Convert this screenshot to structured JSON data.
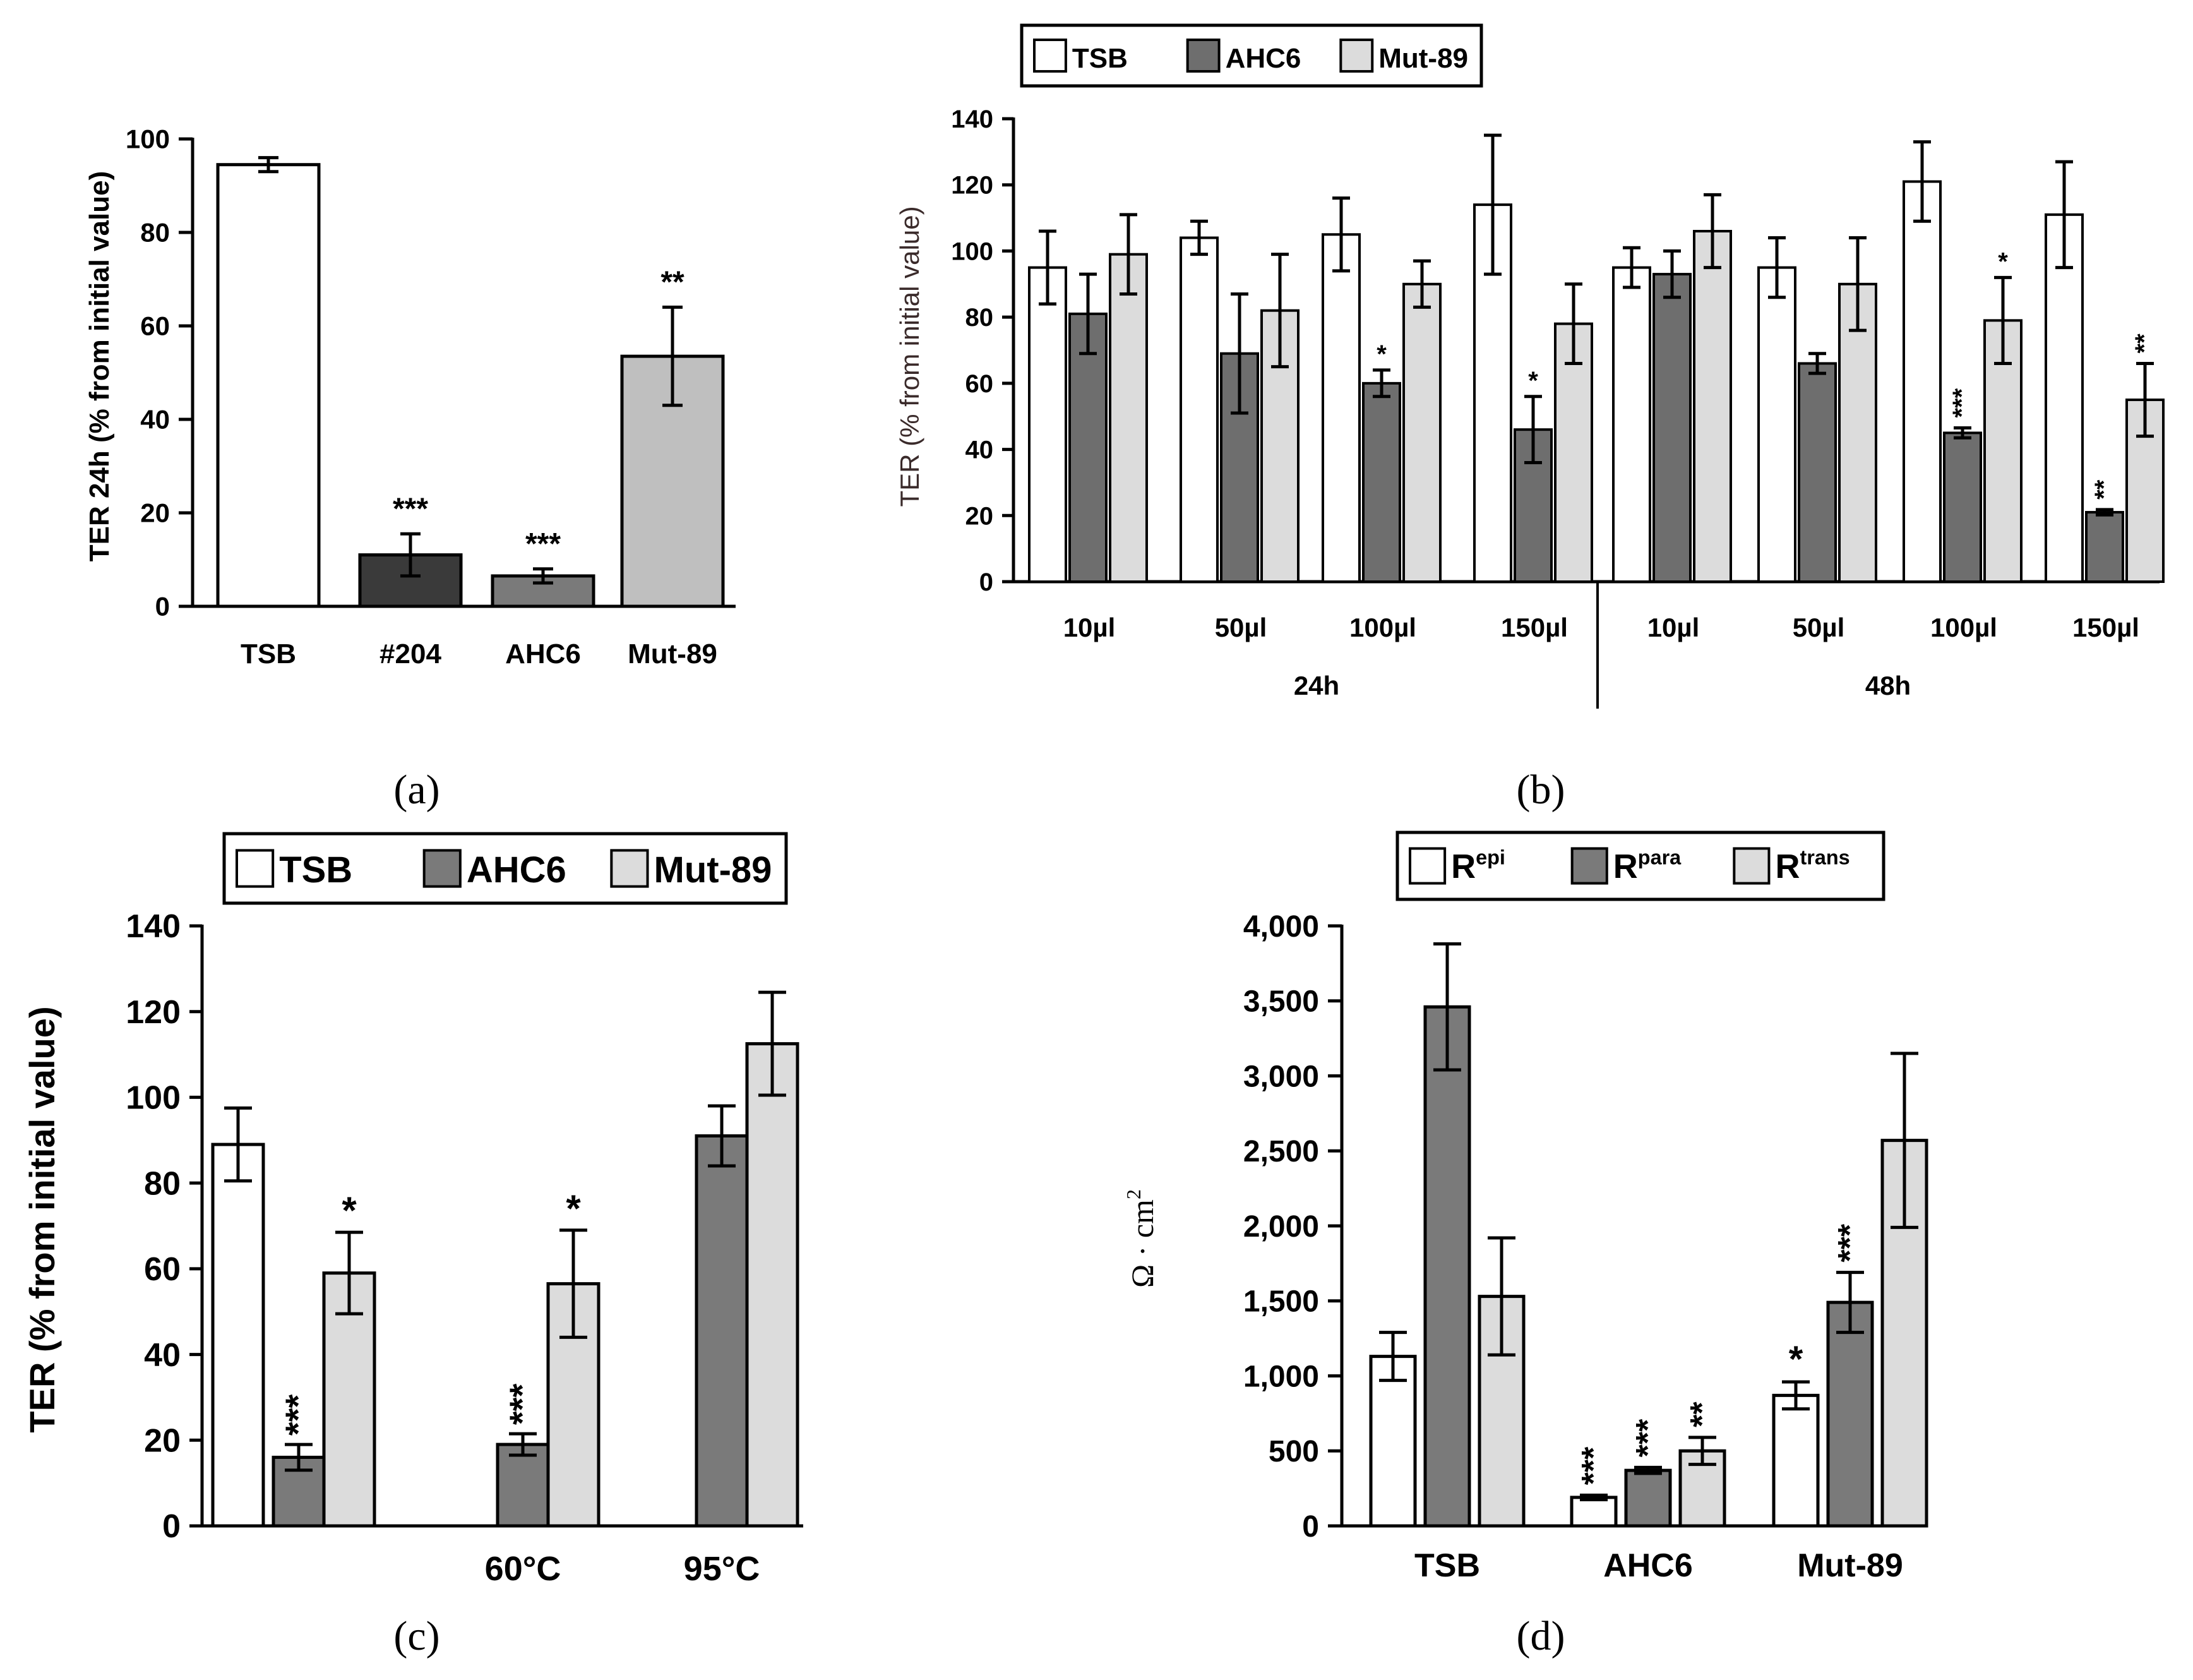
{
  "colors": {
    "white": "#ffffff",
    "dark": "#3a3a3a",
    "mid": "#7a7a7a",
    "grey": "#6e6e6e",
    "light": "#bfbfbf",
    "lighter": "#dcdcdc"
  },
  "chart_data": [
    {
      "id": "a",
      "panel_label": "(a)",
      "type": "bar",
      "ylabel": "TER 24h  (% from initial value)",
      "ylim": [
        0,
        100
      ],
      "yticks": [
        "0",
        "20",
        "40",
        "60",
        "80",
        "100"
      ],
      "categories": [
        "TSB",
        "#204",
        "AHC6",
        "Mut-89"
      ],
      "values": [
        94.5,
        11,
        6.5,
        53.5
      ],
      "errors": [
        1.5,
        4.5,
        1.5,
        10.5
      ],
      "bar_colors": [
        "#ffffff",
        "#3a3a3a",
        "#7a7a7a",
        "#bfbfbf"
      ],
      "annotations": [
        "",
        "***",
        "***",
        "**"
      ]
    },
    {
      "id": "b",
      "panel_label": "(b)",
      "type": "bar",
      "ylabel": "TER (% from initial value)",
      "ylim": [
        0,
        140
      ],
      "yticks": [
        "0",
        "20",
        "40",
        "60",
        "80",
        "100",
        "120",
        "140"
      ],
      "legend": [
        "TSB",
        "AHC6",
        "Mut-89"
      ],
      "legend_colors": [
        "#ffffff",
        "#6e6e6e",
        "#dcdcdc"
      ],
      "categories": [
        "10µl",
        "50µl",
        "100µl",
        "150µl",
        "10µl",
        "50µl",
        "100µl",
        "150µl"
      ],
      "groups": [
        "24h",
        "48h"
      ],
      "series": [
        {
          "name": "TSB",
          "values": [
            95,
            104,
            105,
            114,
            95,
            95,
            121,
            111
          ],
          "errors": [
            11,
            5,
            11,
            21,
            6,
            9,
            12,
            16
          ]
        },
        {
          "name": "AHC6",
          "values": [
            81,
            69,
            60,
            46,
            93,
            66,
            45,
            21
          ],
          "errors": [
            12,
            18,
            4,
            10,
            7,
            3,
            1.5,
            0.8
          ]
        },
        {
          "name": "Mut-89",
          "values": [
            99,
            82,
            90,
            78,
            106,
            90,
            79,
            55
          ],
          "errors": [
            12,
            17,
            7,
            12,
            11,
            14,
            13,
            11
          ]
        }
      ],
      "annotations": [
        {
          "series": 1,
          "index": 2,
          "text": "*"
        },
        {
          "series": 1,
          "index": 3,
          "text": "*"
        },
        {
          "series": 1,
          "index": 6,
          "text": "***"
        },
        {
          "series": 2,
          "index": 6,
          "text": "*"
        },
        {
          "series": 1,
          "index": 7,
          "text": "**"
        },
        {
          "series": 2,
          "index": 7,
          "text": "**"
        }
      ]
    },
    {
      "id": "c",
      "panel_label": "(c)",
      "type": "bar",
      "ylabel": "TER (% from initial value)",
      "ylim": [
        0,
        140
      ],
      "yticks": [
        "0",
        "20",
        "40",
        "60",
        "80",
        "100",
        "120",
        "140"
      ],
      "legend": [
        "TSB",
        "AHC6",
        "Mut-89"
      ],
      "legend_colors": [
        "#ffffff",
        "#7a7a7a",
        "#dcdcdc"
      ],
      "categories": [
        "",
        "60°C",
        "95°C"
      ],
      "series": [
        {
          "name": "TSB",
          "values": [
            89,
            null,
            null
          ],
          "errors": [
            8.5,
            null,
            null
          ]
        },
        {
          "name": "AHC6",
          "values": [
            16,
            19,
            91
          ],
          "errors": [
            3,
            2.5,
            7
          ]
        },
        {
          "name": "Mut-89",
          "values": [
            59,
            56.5,
            112.5
          ],
          "errors": [
            9.5,
            12.5,
            12
          ]
        }
      ],
      "annotations": [
        {
          "series": 1,
          "index": 0,
          "text": "***"
        },
        {
          "series": 2,
          "index": 0,
          "text": "*"
        },
        {
          "series": 1,
          "index": 1,
          "text": "***"
        },
        {
          "series": 2,
          "index": 1,
          "text": "*"
        }
      ]
    },
    {
      "id": "d",
      "panel_label": "(d)",
      "type": "bar",
      "ylabel_prefix": "Ω · cm",
      "ylabel_sup": "2",
      "ylim": [
        0,
        4000
      ],
      "yticks": [
        "0",
        "500",
        "1,000",
        "1,500",
        "2,000",
        "2,500",
        "3,000",
        "3,500",
        "4,000"
      ],
      "legend": [
        {
          "base": "R",
          "sup": "epi"
        },
        {
          "base": "R",
          "sup": "para"
        },
        {
          "base": "R",
          "sup": "trans"
        }
      ],
      "legend_colors": [
        "#ffffff",
        "#7a7a7a",
        "#dcdcdc"
      ],
      "categories": [
        "TSB",
        "AHC6",
        "Mut-89"
      ],
      "series": [
        {
          "name": "Repi",
          "values": [
            1130,
            190,
            870
          ],
          "errors": [
            160,
            15,
            90
          ]
        },
        {
          "name": "Rpara",
          "values": [
            3460,
            370,
            1490
          ],
          "errors": [
            420,
            20,
            200
          ]
        },
        {
          "name": "Rtrans",
          "values": [
            1530,
            500,
            2570
          ],
          "errors": [
            390,
            90,
            580
          ]
        }
      ],
      "annotations": [
        {
          "series": 0,
          "index": 1,
          "text": "***"
        },
        {
          "series": 1,
          "index": 1,
          "text": "***"
        },
        {
          "series": 2,
          "index": 1,
          "text": "**"
        },
        {
          "series": 0,
          "index": 2,
          "text": "*"
        },
        {
          "series": 1,
          "index": 2,
          "text": "***"
        }
      ]
    }
  ]
}
